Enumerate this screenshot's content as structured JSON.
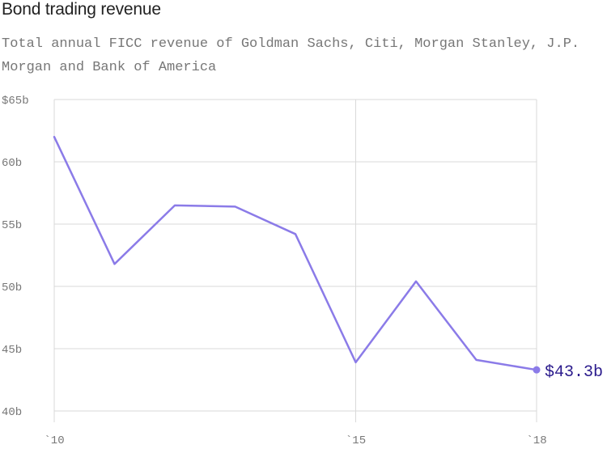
{
  "chart_data": {
    "type": "line",
    "title": "Bond trading revenue",
    "subtitle": "Total annual FICC revenue of Goldman Sachs, Citi, Morgan Stanley, J.P. Morgan and Bank of America",
    "xlabel": "",
    "ylabel": "",
    "x": [
      2010,
      2011,
      2012,
      2013,
      2014,
      2015,
      2016,
      2017,
      2018
    ],
    "series": [
      {
        "values": [
          62.0,
          51.8,
          56.5,
          56.4,
          54.2,
          43.9,
          50.4,
          44.1,
          43.3
        ]
      }
    ],
    "xlim": [
      2010,
      2018
    ],
    "ylim": [
      40,
      65
    ],
    "x_ticks": [
      {
        "value": 2010,
        "label": "`10"
      },
      {
        "value": 2015,
        "label": "`15"
      },
      {
        "value": 2018,
        "label": "`18"
      }
    ],
    "y_ticks": [
      {
        "value": 65,
        "label": "$65b"
      },
      {
        "value": 60,
        "label": "60b"
      },
      {
        "value": 55,
        "label": "55b"
      },
      {
        "value": 50,
        "label": "50b"
      },
      {
        "value": 45,
        "label": "45b"
      },
      {
        "value": 40,
        "label": "40b"
      }
    ],
    "end_label": "$43.3b",
    "grid": true,
    "line_color": "#8b7be8",
    "end_label_color": "#2a1a8c"
  }
}
